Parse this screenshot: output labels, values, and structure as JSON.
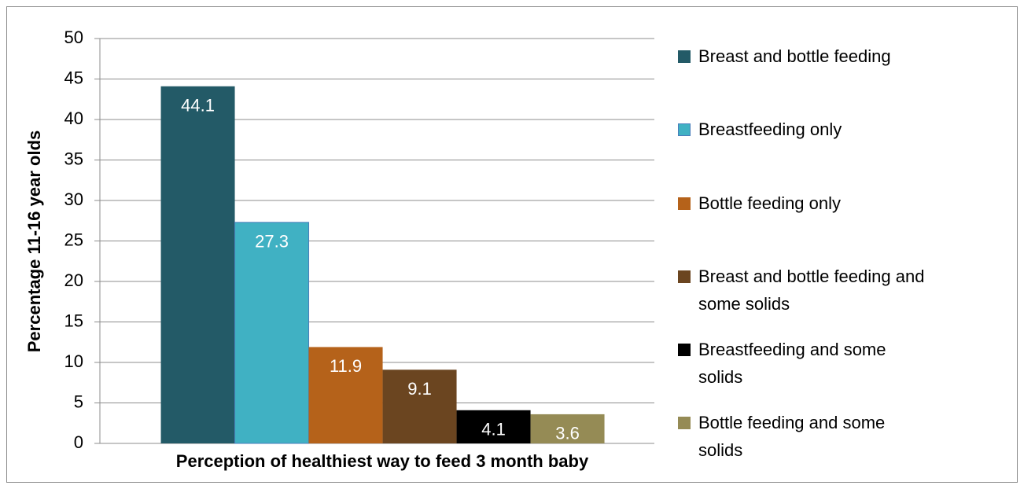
{
  "chart_data": {
    "type": "bar",
    "x_label": "Perception of healthiest way to feed 3 month baby",
    "y_label": "Percentage 11-16 year olds",
    "categories": [
      null
    ],
    "series": [
      {
        "name": "Breast and bottle feeding",
        "color": "#235a67",
        "values": [
          44.1
        ]
      },
      {
        "name": "Breastfeeding only",
        "color": "#40b1c3",
        "values": [
          27.3
        ]
      },
      {
        "name": "Bottle feeding only",
        "color": "#b5621a",
        "values": [
          11.9
        ]
      },
      {
        "name": "Breast and bottle feeding and some solids",
        "color": "#6b4520",
        "values": [
          9.1
        ]
      },
      {
        "name": "Breastfeeding and some solids",
        "color": "#000000",
        "values": [
          4.1
        ]
      },
      {
        "name": "Bottle feeding and some solids",
        "color": "#958b55",
        "values": [
          3.6
        ]
      }
    ],
    "ylim": [
      0,
      50
    ],
    "yticks": [
      0,
      5,
      10,
      15,
      20,
      25,
      30,
      35,
      40,
      45,
      50
    ],
    "grid": true,
    "legend": "right"
  }
}
